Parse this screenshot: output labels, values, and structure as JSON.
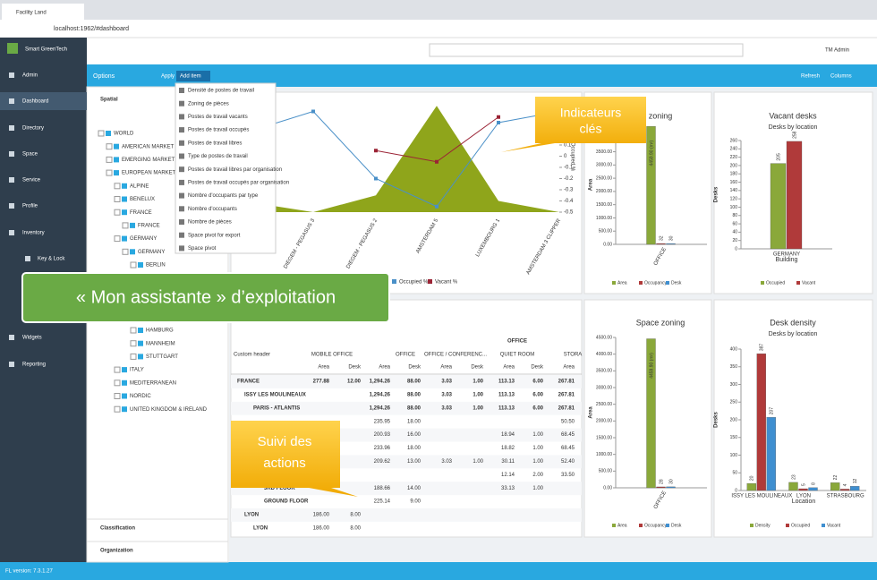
{
  "browser": {
    "tab_title": "Facility Land",
    "url": "localhost:1962/#dashboard"
  },
  "app": {
    "brand": "Smart GreenTech",
    "user": "TM Admin",
    "refresh": "Refresh",
    "columns": "Columns",
    "version": "FL version: 7.3.1.27"
  },
  "sidebar": {
    "items": [
      "Admin",
      "Dashboard",
      "Directory",
      "Space",
      "Service",
      "Profile",
      "Inventory",
      "Key & Lock",
      "Widgets",
      "Reporting"
    ]
  },
  "options": {
    "title": "Options",
    "apply": "Apply",
    "add_item": "Add item",
    "spatial": "Spatial",
    "classification": "Classification",
    "organization": "Organization",
    "tree": [
      "WORLD",
      "AMERICAN MARKET",
      "EMERGING MARKETS",
      "EUROPEAN MARKETS",
      "ALPINE",
      "BENELUX",
      "FRANCE",
      "FRANCE",
      "GERMANY",
      "GERMANY",
      "BERLIN",
      "HAMBURG",
      "MANNHEIM",
      "STUTTGART",
      "ITALY",
      "MEDITERRANEAN",
      "NORDIC",
      "UNITED KINGDOM & IRELAND"
    ]
  },
  "menu": {
    "items": [
      "Densité de postes de travail",
      "Zoning de pièces",
      "Postes de travail vacants",
      "Postes de travail occupés",
      "Postes de travail libres",
      "Type de postes de travail",
      "Postes de travail libres par organisation",
      "Postes de travail occupés par organisation",
      "Nombre d'occupants par type",
      "Nombre d'occupants",
      "Nombre de pièces",
      "Space pivot for export",
      "Space pivot"
    ]
  },
  "callouts": {
    "kpi": [
      "Indicateurs",
      "clés"
    ],
    "assistant": "« Mon assistante » d’exploitation",
    "followup": [
      "Suivi des",
      "actions"
    ]
  },
  "line_chart": {
    "type": "line",
    "categories": [
      null,
      "DIEGEM - PEGASUS 3",
      "DIEGEM - PEGASUS 2",
      "AMSTERDAM 5",
      "LUXEMBOURG 1",
      "AMSTERDAM 3 CLIPPER"
    ],
    "y2_label": "Occupied %",
    "y2lim": [
      -0.5,
      0.5
    ],
    "y2ticks": [
      0.5,
      0.4,
      0.3,
      0.2,
      0.1,
      0,
      -0.1,
      -0.2,
      -0.3,
      -0.4,
      -0.5
    ],
    "area": {
      "color": "#8fa51b",
      "values": [
        -0.4,
        -0.5,
        -0.35,
        0.45,
        -0.4,
        -0.5
      ]
    },
    "series": [
      {
        "name": "Occupied %",
        "color": "#4a90c8",
        "values": [
          0.2,
          0.4,
          -0.2,
          -0.45,
          0.3,
          0.4
        ]
      },
      {
        "name": "Vacant %",
        "color": "#9b2335",
        "values": [
          null,
          null,
          0.05,
          -0.05,
          0.35,
          null
        ]
      }
    ]
  },
  "space_zoning_top": {
    "type": "bar",
    "title": "Space zoning",
    "y_label": "Area",
    "categories": [
      "OFFICE"
    ],
    "ylim": [
      0,
      4500
    ],
    "yticks": [
      {
        "value": 0,
        "label": "0.00"
      },
      {
        "value": 500,
        "label": "500.00"
      },
      {
        "value": 1000,
        "label": "1000.00"
      },
      {
        "value": 1500,
        "label": "1500.00"
      },
      {
        "value": 2000,
        "label": "2000.00"
      },
      {
        "value": 2500,
        "label": "2500.00"
      },
      {
        "value": 3000,
        "label": "3000.00"
      },
      {
        "value": 3500,
        "label": "3500.00"
      },
      {
        "value": 4000,
        "label": "4000.00"
      },
      {
        "value": 4500,
        "label": "4500.00"
      }
    ],
    "series": [
      {
        "name": "Area",
        "color": "#8aa83a",
        "values": [
          4459.9
        ],
        "value_labels": [
          "4459.90 (m²)"
        ]
      },
      {
        "name": "Occupancy",
        "color": "#b03a3a",
        "values": [
          32
        ]
      },
      {
        "name": "Desk",
        "color": "#3f8fd0",
        "values": [
          30
        ]
      }
    ]
  },
  "vacant_desks": {
    "type": "bar",
    "title": "Vacant desks",
    "subtitle": "Desks by location",
    "y_label": "Desks",
    "x_label": "Building",
    "categories": [
      "GERMANY"
    ],
    "ylim": [
      0,
      260
    ],
    "yticks": [
      0,
      20,
      40,
      60,
      80,
      100,
      120,
      140,
      160,
      180,
      200,
      220,
      240,
      260
    ],
    "series": [
      {
        "name": "Occupied",
        "color": "#8aa83a",
        "values": [
          205
        ]
      },
      {
        "name": "Vacant",
        "color": "#b03a3a",
        "values": [
          258
        ]
      }
    ]
  },
  "space_zoning_bottom": {
    "type": "bar",
    "title": "Space zoning",
    "y_label": "Area",
    "categories": [
      "OFFICE"
    ],
    "ylim": [
      0,
      4500
    ],
    "yticks": [
      {
        "value": 0,
        "label": "0.00"
      },
      {
        "value": 500,
        "label": "500.00"
      },
      {
        "value": 1000,
        "label": "1000.00"
      },
      {
        "value": 1500,
        "label": "1500.00"
      },
      {
        "value": 2000,
        "label": "2000.00"
      },
      {
        "value": 2500,
        "label": "2500.00"
      },
      {
        "value": 3000,
        "label": "3000.00"
      },
      {
        "value": 3500,
        "label": "3500.00"
      },
      {
        "value": 4000,
        "label": "4000.00"
      },
      {
        "value": 4500,
        "label": "4500.00"
      }
    ],
    "series": [
      {
        "name": "Area",
        "color": "#8aa83a",
        "values": [
          4459.9
        ],
        "value_labels": [
          "4459.90 (m²)"
        ]
      },
      {
        "name": "Occupancy",
        "color": "#b03a3a",
        "values": [
          28
        ]
      },
      {
        "name": "Desk",
        "color": "#3f8fd0",
        "values": [
          30
        ]
      }
    ]
  },
  "desk_density": {
    "type": "bar",
    "title": "Desk density",
    "subtitle": "Desks by location",
    "y_label": "Desks",
    "x_label": "Location",
    "categories": [
      "ISSY LES MOULINEAUX",
      "LYON",
      "STRASBOURG"
    ],
    "ylim": [
      0,
      400
    ],
    "yticks": [
      0,
      50,
      100,
      150,
      200,
      250,
      300,
      350,
      400
    ],
    "series": [
      {
        "name": "Density",
        "color": "#8aa83a",
        "values": [
          20,
          23,
          22
        ]
      },
      {
        "name": "Occupied",
        "color": "#b03a3a",
        "values": [
          387,
          5,
          4
        ]
      },
      {
        "name": "Vacant",
        "color": "#3f8fd0",
        "values": [
          207,
          8,
          12
        ]
      }
    ]
  },
  "pivot": {
    "corner": "Custom header",
    "group": "OFFICE",
    "columns": [
      "MOBILE OFFICE",
      "OFFICE",
      "OFFICE / CONFERENC...",
      "QUIET ROOM",
      "STORA"
    ],
    "subheaders": [
      "Area",
      "Desk",
      "Area",
      "Desk",
      "Area",
      "Desk",
      "Area",
      "Desk",
      "Area"
    ],
    "rows": [
      {
        "label": "FRANCE",
        "cells": [
          "277.88",
          "12.00",
          "1,294.26",
          "88.00",
          "3.03",
          "1.00",
          "113.13",
          "6.00",
          "267.81"
        ]
      },
      {
        "label": "ISSY LES MOULINEAUX",
        "cells": [
          null,
          null,
          "1,294.26",
          "88.00",
          "3.03",
          "1.00",
          "113.13",
          "6.00",
          "267.81"
        ]
      },
      {
        "label": "PARIS - ATLANTIS",
        "cells": [
          null,
          null,
          "1,294.26",
          "88.00",
          "3.03",
          "1.00",
          "113.13",
          "6.00",
          "267.81"
        ]
      },
      {
        "label": null,
        "cells": [
          null,
          null,
          "235.95",
          "18.00",
          null,
          null,
          null,
          null,
          "50.50"
        ]
      },
      {
        "label": null,
        "cells": [
          null,
          null,
          "200.93",
          "16.00",
          null,
          null,
          "18.94",
          "1.00",
          "68.45"
        ]
      },
      {
        "label": null,
        "cells": [
          null,
          null,
          "233.96",
          "18.00",
          null,
          null,
          "18.82",
          "1.00",
          "68.45"
        ]
      },
      {
        "label": null,
        "cells": [
          null,
          null,
          "209.62",
          "13.00",
          "3.03",
          "1.00",
          "30.11",
          "1.00",
          "52.40"
        ]
      },
      {
        "label": null,
        "cells": [
          null,
          null,
          null,
          null,
          null,
          null,
          "12.14",
          "2.00",
          "33.50"
        ]
      },
      {
        "label": "3RD FLOOR",
        "cells": [
          null,
          null,
          "188.66",
          "14.00",
          null,
          null,
          "33.13",
          "1.00",
          null
        ]
      },
      {
        "label": "GROUND FLOOR",
        "cells": [
          null,
          null,
          "225.14",
          "9.00",
          null,
          null,
          null,
          null,
          null
        ]
      },
      {
        "label": "LYON",
        "cells": [
          "186.00",
          "8.00",
          null,
          null,
          null,
          null,
          null,
          null,
          null
        ]
      },
      {
        "label": "LYON",
        "cells": [
          "186.00",
          "8.00",
          null,
          null,
          null,
          null,
          null,
          null,
          null
        ]
      }
    ]
  }
}
